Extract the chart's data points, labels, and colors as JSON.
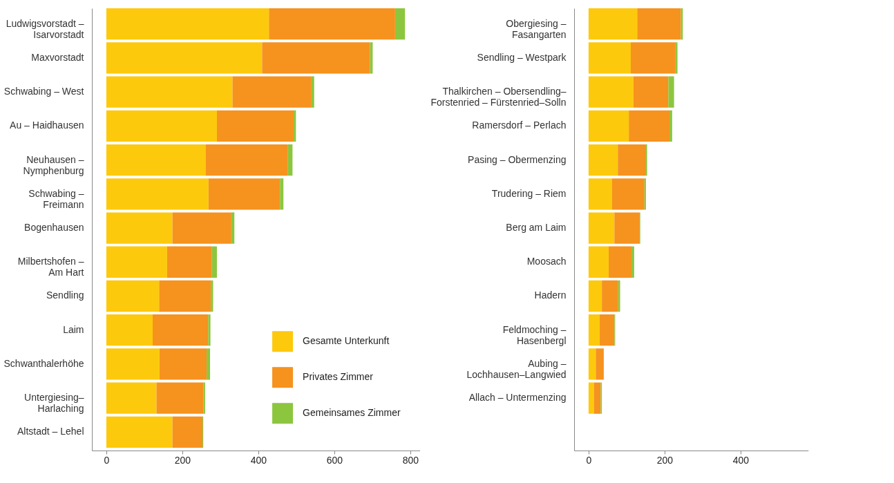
{
  "chart_data": [
    {
      "type": "bar",
      "orientation": "horizontal",
      "stacked": true,
      "grid": false,
      "legend": "bottom right",
      "categories": [
        "Ludwigsvorstadt – Isarvorstadt",
        "Maxvorstadt",
        "Schwabing – West",
        "Au – Haidhausen",
        "Neuhausen – Nymphenburg",
        "Schwabing – Freimann",
        "Bogenhausen",
        "Milbertshofen – Am Hart",
        "Sendling",
        "Laim",
        "Schwanthalerhöhe",
        "Untergiesing–Harlaching",
        "Altstadt – Lehel"
      ],
      "series": [
        {
          "name": "Gesamte Unterkunft",
          "color": "#fdc90c",
          "values": [
            428,
            410,
            332,
            291,
            261,
            269,
            174,
            160,
            139,
            122,
            140,
            132,
            174
          ]
        },
        {
          "name": "Privates Zimmer",
          "color": "#f6921e",
          "values": [
            332,
            284,
            208,
            202,
            217,
            188,
            155,
            118,
            136,
            146,
            124,
            124,
            79
          ]
        },
        {
          "name": "Gemeinsames Zimmer",
          "color": "#8cc63f",
          "values": [
            26,
            7,
            7,
            6,
            12,
            9,
            8,
            13,
            6,
            6,
            9,
            4,
            2
          ]
        }
      ],
      "xlim": [
        -38,
        825
      ],
      "xticks": [
        0,
        200,
        400,
        600,
        800
      ]
    },
    {
      "type": "bar",
      "orientation": "horizontal",
      "stacked": true,
      "grid": false,
      "legend": false,
      "categories": [
        "Obergiesing – Fasangarten",
        "Sendling – Westpark",
        "Thalkirchen – Obersendling– Forstenried – Fürstenried–Solln",
        "Ramersdorf – Perlach",
        "Pasing – Obermenzing",
        "Trudering – Riem",
        "Berg am Laim",
        "Moosach",
        "Hadern",
        "Feldmoching – Hasenbergl",
        "Aubing – Lochhausen–Langwied",
        "Allach – Untermenzing"
      ],
      "series": [
        {
          "name": "Gesamte Unterkunft",
          "color": "#fdc90c",
          "values": [
            128,
            111,
            118,
            106,
            77,
            62,
            68,
            53,
            35,
            29,
            19,
            14
          ]
        },
        {
          "name": "Privates Zimmer",
          "color": "#f6921e",
          "values": [
            115,
            118,
            92,
            107,
            74,
            85,
            65,
            60,
            43,
            39,
            21,
            18
          ]
        },
        {
          "name": "Gemeinsames Zimmer",
          "color": "#8cc63f",
          "values": [
            5,
            5,
            15,
            7,
            3,
            4,
            3,
            7,
            5,
            2,
            null,
            3
          ]
        }
      ],
      "xlim": [
        -38,
        578
      ],
      "xticks": [
        0,
        200,
        400
      ]
    }
  ]
}
